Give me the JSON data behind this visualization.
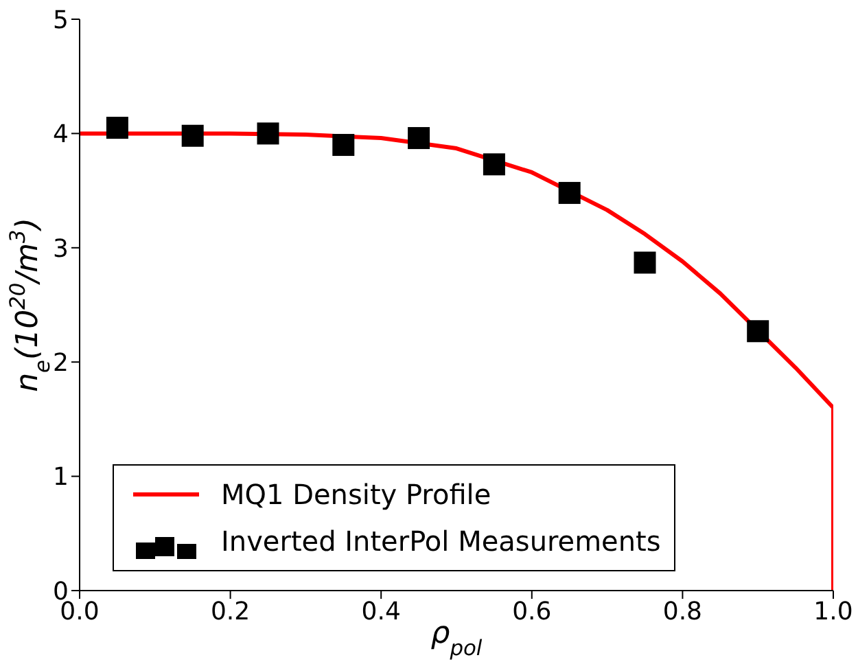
{
  "chart_data": {
    "type": "line",
    "xlabel": "ρ$_{pol}$",
    "ylabel": "n$_{e}$(10$^{20}$/m$^{3}$)",
    "xlim": [
      0,
      1
    ],
    "ylim": [
      0,
      5
    ],
    "xticks": [
      {
        "value": 0,
        "label": "0.0"
      },
      {
        "value": 0.2,
        "label": "0.2"
      },
      {
        "value": 0.4,
        "label": "0.4"
      },
      {
        "value": 0.6,
        "label": "0.6"
      },
      {
        "value": 0.8,
        "label": "0.8"
      },
      {
        "value": 1,
        "label": "1.0"
      }
    ],
    "yticks": [
      0,
      1,
      2,
      3,
      4,
      5
    ],
    "grid": false,
    "legend": "bottom left",
    "series": [
      {
        "name": "MQ1 Density Profile",
        "color": "#ff0000",
        "marker": "none",
        "line_style": "solid",
        "x": [
          0,
          0.1,
          0.2,
          0.3,
          0.4,
          0.5,
          0.6,
          0.7,
          0.75,
          0.8,
          0.85,
          0.95,
          1,
          1
        ],
        "values": [
          4,
          4,
          4,
          3.99,
          3.96,
          3.87,
          3.66,
          3.33,
          3.12,
          2.88,
          2.6,
          1.95,
          1.6,
          0
        ]
      },
      {
        "name": "Inverted InterPol Measurements",
        "type": "scatter",
        "color": "#000000",
        "marker": "square",
        "x": [
          0.05,
          0.15,
          0.25,
          0.35,
          0.45,
          0.55,
          0.65,
          0.75,
          0.9
        ],
        "values": [
          4.05,
          3.98,
          4.0,
          3.9,
          3.96,
          3.73,
          3.48,
          2.87,
          2.27
        ]
      }
    ]
  }
}
